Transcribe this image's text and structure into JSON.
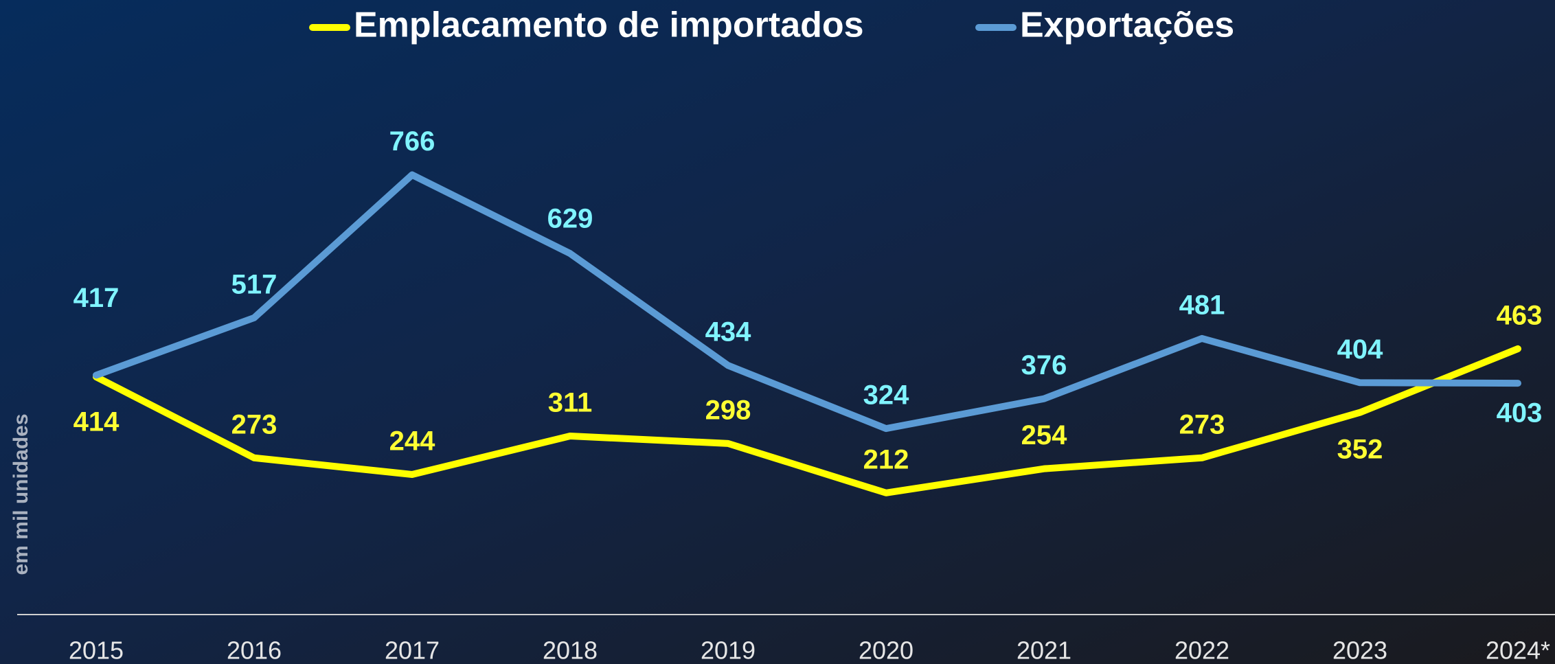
{
  "chart_data": {
    "type": "line",
    "y_label": "em mil unidades",
    "categories": [
      "2015",
      "2016",
      "2017",
      "2018",
      "2019",
      "2020",
      "2021",
      "2022",
      "2023",
      "2024*"
    ],
    "series": [
      {
        "name": "Emplacamento de importados",
        "color": "#ffff00",
        "label_color": "#ffff33",
        "values": [
          414,
          273,
          244,
          311,
          298,
          212,
          254,
          273,
          352,
          463
        ]
      },
      {
        "name": "Exportações",
        "color": "#5b9bd5",
        "label_color": "#80f4ff",
        "values": [
          417,
          517,
          766,
          629,
          434,
          324,
          376,
          481,
          404,
          403
        ]
      }
    ],
    "ylim": [
      0,
      1000
    ]
  }
}
